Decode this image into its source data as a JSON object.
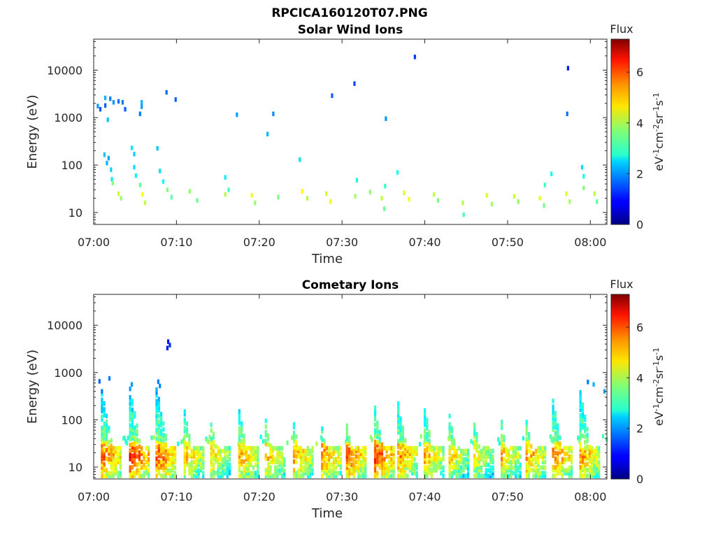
{
  "chart_data": {
    "title": "RPCICA160120T07.PNG",
    "panels": [
      {
        "type": "heatmap",
        "title": "Solar Wind Ions",
        "xlabel": "Time",
        "ylabel": "Energy (eV)",
        "x_ticks": [
          "07:00",
          "07:10",
          "07:20",
          "07:30",
          "07:40",
          "07:50",
          "08:00"
        ],
        "x_tick_minutes": [
          0,
          10,
          20,
          30,
          40,
          50,
          60
        ],
        "xlim_minutes": [
          0,
          62
        ],
        "y_scale": "log",
        "ylim": [
          5.6,
          45000
        ],
        "y_ticks": [
          "10",
          "100",
          "1000",
          "10000"
        ],
        "y_tick_values": [
          10,
          100,
          1000,
          10000
        ],
        "colorbar": {
          "title": "Flux",
          "label": "eV-1cm-2sr-1s-1",
          "range": [
            0,
            7.3
          ],
          "ticks": [
            "0",
            "2",
            "4",
            "6"
          ],
          "tick_values": [
            0,
            2,
            4,
            6
          ],
          "colormap": "jet"
        },
        "cells": [
          [
            0.5,
            1750,
            2.0
          ],
          [
            0.8,
            1500,
            1.5
          ],
          [
            1.4,
            2600,
            2.2
          ],
          [
            1.4,
            1800,
            1.6
          ],
          [
            1.7,
            900,
            2.3
          ],
          [
            2.0,
            2500,
            1.8
          ],
          [
            2.4,
            2100,
            2.0
          ],
          [
            3.0,
            2200,
            1.7
          ],
          [
            3.5,
            2100,
            1.8
          ],
          [
            3.8,
            1500,
            1.6
          ],
          [
            5.8,
            2100,
            2.2
          ],
          [
            5.8,
            1700,
            2.0
          ],
          [
            5.6,
            1200,
            1.8
          ],
          [
            8.8,
            3400,
            1.7
          ],
          [
            9.9,
            2400,
            1.6
          ],
          [
            17.3,
            1150,
            2.1
          ],
          [
            21.0,
            450,
            2.2
          ],
          [
            21.7,
            1200,
            1.9
          ],
          [
            28.8,
            2900,
            1.6
          ],
          [
            31.5,
            5200,
            1.4
          ],
          [
            35.3,
            950,
            2.0
          ],
          [
            38.8,
            19000,
            1.3
          ],
          [
            57.3,
            11000,
            1.1
          ],
          [
            57.2,
            1200,
            1.7
          ],
          [
            1.3,
            165,
            2.3
          ],
          [
            1.8,
            140,
            2.1
          ],
          [
            1.6,
            110,
            2.2
          ],
          [
            2.1,
            80,
            2.4
          ],
          [
            2.2,
            50,
            2.6
          ],
          [
            4.6,
            230,
            2.6
          ],
          [
            4.9,
            170,
            2.4
          ],
          [
            4.9,
            90,
            2.5
          ],
          [
            5.1,
            60,
            2.7
          ],
          [
            7.7,
            225,
            2.3
          ],
          [
            8.0,
            75,
            2.5
          ],
          [
            8.4,
            45,
            2.7
          ],
          [
            15.9,
            55,
            2.6
          ],
          [
            24.9,
            130,
            2.5
          ],
          [
            31.8,
            48,
            2.8
          ],
          [
            36.7,
            70,
            2.8
          ],
          [
            35.2,
            36,
            3.1
          ],
          [
            55.3,
            65,
            2.8
          ],
          [
            54.5,
            38,
            3.1
          ],
          [
            59.0,
            90,
            2.5
          ],
          [
            59.2,
            58,
            2.9
          ],
          [
            2.3,
            42,
            3.6
          ],
          [
            3.0,
            25,
            4.2
          ],
          [
            3.3,
            20,
            3.8
          ],
          [
            5.6,
            38,
            3.5
          ],
          [
            5.9,
            24,
            4.5
          ],
          [
            6.2,
            16,
            4.1
          ],
          [
            8.9,
            30,
            3.7
          ],
          [
            9.4,
            21,
            3.4
          ],
          [
            11.6,
            28,
            3.8
          ],
          [
            12.5,
            18,
            3.5
          ],
          [
            15.9,
            24,
            4.0
          ],
          [
            16.3,
            30,
            3.2
          ],
          [
            19.1,
            23,
            4.4
          ],
          [
            19.5,
            16,
            3.8
          ],
          [
            22.3,
            21,
            3.6
          ],
          [
            25.2,
            28,
            4.6
          ],
          [
            25.8,
            20,
            4.0
          ],
          [
            28.1,
            25,
            4.2
          ],
          [
            28.6,
            17,
            4.5
          ],
          [
            31.6,
            22,
            3.9
          ],
          [
            33.4,
            27,
            3.8
          ],
          [
            34.8,
            20,
            4.1
          ],
          [
            35.1,
            12,
            3.5
          ],
          [
            37.5,
            26,
            4.3
          ],
          [
            38.1,
            19,
            4.5
          ],
          [
            41.1,
            24,
            4.1
          ],
          [
            41.6,
            18,
            3.6
          ],
          [
            44.6,
            16,
            4.0
          ],
          [
            44.7,
            9,
            3.2
          ],
          [
            47.5,
            23,
            4.3
          ],
          [
            48.1,
            15,
            3.9
          ],
          [
            50.8,
            22,
            4.2
          ],
          [
            51.3,
            17,
            3.8
          ],
          [
            53.9,
            20,
            4.4
          ],
          [
            54.4,
            14,
            3.6
          ],
          [
            57.1,
            25,
            4.3
          ],
          [
            57.5,
            17,
            3.9
          ],
          [
            59.2,
            33,
            3.7
          ],
          [
            60.5,
            25,
            4.0
          ],
          [
            60.8,
            17,
            3.4
          ]
        ]
      },
      {
        "type": "heatmap",
        "title": "Cometary Ions",
        "xlabel": "Time",
        "ylabel": "Energy (eV)",
        "x_ticks": [
          "07:00",
          "07:10",
          "07:20",
          "07:30",
          "07:40",
          "07:50",
          "08:00"
        ],
        "x_tick_minutes": [
          0,
          10,
          20,
          30,
          40,
          50,
          60
        ],
        "xlim_minutes": [
          0,
          62
        ],
        "y_scale": "log",
        "ylim": [
          5.6,
          45000
        ],
        "y_ticks": [
          "10",
          "100",
          "1000",
          "10000"
        ],
        "y_tick_values": [
          10,
          100,
          1000,
          10000
        ],
        "colorbar": {
          "title": "Flux",
          "label": "eV-1cm-2sr-1s-1",
          "range": [
            0,
            7.3
          ],
          "ticks": [
            "0",
            "2",
            "4",
            "6"
          ],
          "tick_values": [
            0,
            2,
            4,
            6
          ],
          "colormap": "jet"
        },
        "cells": [
          [
            9.0,
            4500,
            1.0
          ],
          [
            9.2,
            3800,
            1.2
          ],
          [
            8.9,
            3300,
            1.1
          ],
          [
            0.7,
            650,
            1.6
          ],
          [
            1.9,
            750,
            1.8
          ],
          [
            4.6,
            560,
            2.0
          ],
          [
            7.8,
            640,
            1.8
          ],
          [
            8.0,
            520,
            1.9
          ],
          [
            59.7,
            630,
            1.8
          ],
          [
            60.4,
            560,
            2.2
          ],
          [
            61.7,
            400,
            2.1
          ]
        ],
        "bursts": [
          {
            "start": 1.0,
            "top": 400,
            "peak": 5.8
          },
          {
            "start": 4.4,
            "top": 450,
            "peak": 6.2
          },
          {
            "start": 7.6,
            "top": 500,
            "peak": 6.0
          },
          {
            "start": 11.0,
            "top": 150,
            "peak": 5.2
          },
          {
            "start": 14.2,
            "top": 90,
            "peak": 5.0
          },
          {
            "start": 17.6,
            "top": 150,
            "peak": 5.4
          },
          {
            "start": 20.8,
            "top": 95,
            "peak": 5.2
          },
          {
            "start": 24.2,
            "top": 80,
            "peak": 5.4
          },
          {
            "start": 27.6,
            "top": 65,
            "peak": 5.6
          },
          {
            "start": 30.6,
            "top": 75,
            "peak": 5.8
          },
          {
            "start": 34.0,
            "top": 180,
            "peak": 6.1
          },
          {
            "start": 36.8,
            "top": 220,
            "peak": 5.6
          },
          {
            "start": 40.0,
            "top": 180,
            "peak": 5.3
          },
          {
            "start": 43.0,
            "top": 120,
            "peak": 5.0
          },
          {
            "start": 46.0,
            "top": 90,
            "peak": 4.8
          },
          {
            "start": 49.3,
            "top": 90,
            "peak": 5.2
          },
          {
            "start": 52.3,
            "top": 90,
            "peak": 5.5
          },
          {
            "start": 55.5,
            "top": 250,
            "peak": 5.7
          },
          {
            "start": 58.8,
            "top": 380,
            "peak": 5.5
          }
        ]
      }
    ]
  }
}
